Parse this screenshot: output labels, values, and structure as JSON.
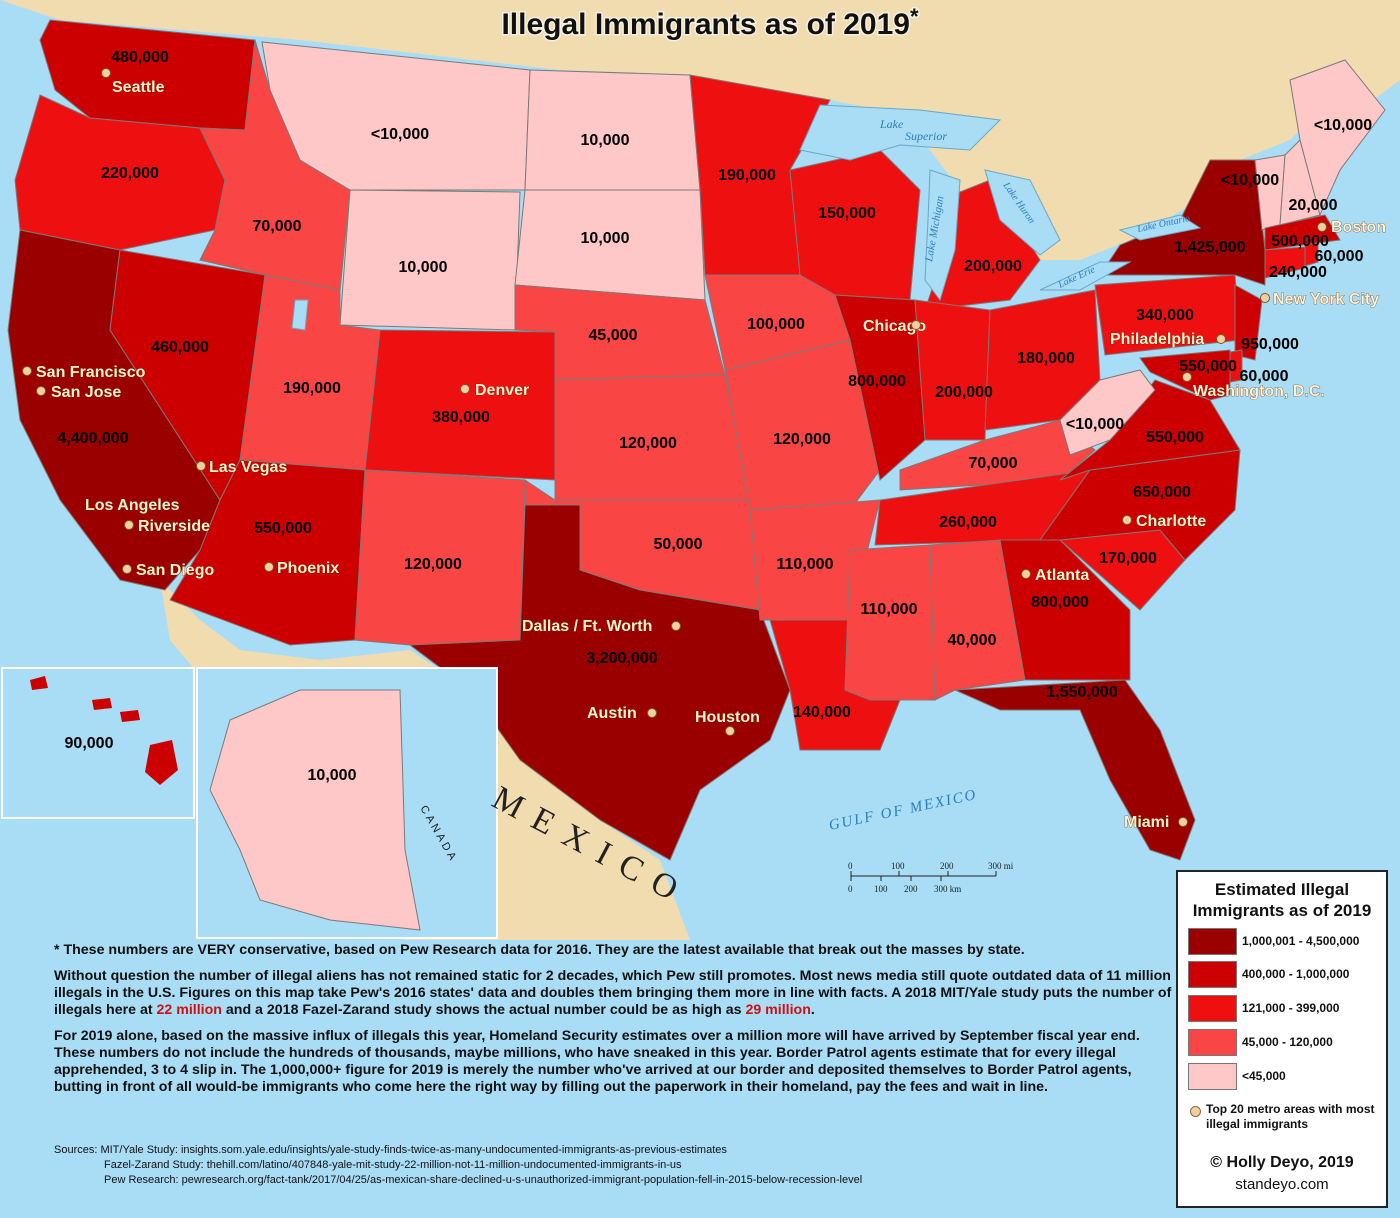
{
  "title": "Illegal Immigrants as of 2019",
  "title_mark": "*",
  "colors": {
    "tier1": "#9b0000",
    "tier2": "#cc0000",
    "tier3": "#ee1010",
    "tier4": "#fa4545",
    "tier5": "#ffc8c8",
    "land": "#f1dcb0",
    "water": "#a9dcf5",
    "city_dot": "#f0d0a0"
  },
  "state_values": {
    "washington": "480,000",
    "oregon": "220,000",
    "california": "4,400,000",
    "nevada": "460,000",
    "idaho": "70,000",
    "montana": "<10,000",
    "wyoming": "10,000",
    "utah": "190,000",
    "arizona": "550,000",
    "colorado": "380,000",
    "new_mexico": "120,000",
    "north_dakota": "10,000",
    "south_dakota": "10,000",
    "nebraska": "45,000",
    "kansas": "120,000",
    "oklahoma": "50,000",
    "texas": "3,200,000",
    "minnesota": "190,000",
    "iowa": "100,000",
    "missouri": "120,000",
    "arkansas": "110,000",
    "louisiana": "140,000",
    "wisconsin": "150,000",
    "illinois": "800,000",
    "michigan": "200,000",
    "indiana": "200,000",
    "ohio": "180,000",
    "kentucky": "70,000",
    "tennessee": "260,000",
    "mississippi": "110,000",
    "alabama": "40,000",
    "georgia": "800,000",
    "florida": "1,550,000",
    "south_carolina": "170,000",
    "north_carolina": "650,000",
    "virginia": "550,000",
    "west_virginia": "<10,000",
    "pennsylvania": "340,000",
    "new_york": "1,425,000",
    "new_jersey": "950,000",
    "maryland": "550,000",
    "delaware": "60,000",
    "connecticut": "240,000",
    "rhode_island": "60,000",
    "massachusetts": "500,000",
    "vermont": "<10,000",
    "new_hampshire": "20,000",
    "maine": "<10,000",
    "alaska": "10,000",
    "hawaii": "90,000"
  },
  "cities": [
    "Seattle",
    "San Francisco",
    "San Jose",
    "Las Vegas",
    "Los Angeles",
    "Riverside",
    "San Diego",
    "Phoenix",
    "Denver",
    "Dallas / Ft. Worth",
    "Austin",
    "Houston",
    "Chicago",
    "Atlanta",
    "Miami",
    "Charlotte",
    "Washington, D.C.",
    "Philadelphia",
    "New York City",
    "Boston"
  ],
  "water_labels": {
    "lake_superior_1": "Lake",
    "lake_superior_2": "Superior",
    "lake_michigan_1": "Lake",
    "lake_michigan_2": "Michigan",
    "lake_huron": "Lake Huron",
    "lake_erie": "Lake Erie",
    "lake_ontario": "Lake Ontario",
    "gulf": "GULF OF MEXICO"
  },
  "countries": {
    "mexico": "MEXICO",
    "canada": "CANADA"
  },
  "scale": {
    "mi_ticks": [
      "0",
      "100",
      "200",
      "300 mi"
    ],
    "km_ticks": [
      "0",
      "100",
      "200",
      "300 km"
    ]
  },
  "notes": {
    "p1": "* These numbers are VERY conservative, based on Pew Research data for 2016.  They are the latest available that break out the masses by state.",
    "p2a": "Without question the number of illegal aliens has not remained static for 2 decades, which Pew still promotes. Most news media still quote outdated data of 11 million illegals in the U.S. Figures on this map take Pew's 2016 states' data and doubles them bringing them more in line with facts. A 2018 MIT/Yale study puts the number of illegals here at ",
    "p2_red1": "22 million",
    "p2b": " and a 2018 Fazel-Zarand study shows the actual number could be as high as ",
    "p2_red2": "29 million",
    "p2c": ".",
    "p3": "For 2019 alone, based on the massive influx of illegals this year, Homeland Security estimates over a million more will have arrived by September fiscal year end. These numbers do not include the hundreds of thousands, maybe millions, who have sneaked in this year. Border Patrol agents estimate that for every illegal apprehended, 3 to 4 slip in. The 1,000,000+ figure for 2019 is merely the number who've arrived at our border and deposited themselves to Border Patrol agents, butting in front of all would-be immigrants who come here the right way by filling out the paperwork in their homeland, pay the fees and wait in line."
  },
  "sources": {
    "line1": "Sources: MIT/Yale Study: insights.som.yale.edu/insights/yale-study-finds-twice-as-many-undocumented-immigrants-as-previous-estimates",
    "line2": "Fazel-Zarand Study: thehill.com/latino/407848-yale-mit-study-22-million-not-11-million-undocumented-immigrants-in-us",
    "line3": "Pew Research: pewresearch.org/fact-tank/2017/04/25/as-mexican-share-declined-u-s-unauthorized-immigrant-population-fell-in-2015-below-recession-level"
  },
  "legend": {
    "title_line1": "Estimated Illegal",
    "title_line2": "Immigrants as of 2019",
    "ranges": [
      "1,000,001 - 4,500,000",
      "400,000 - 1,000,000",
      "121,000 - 399,000",
      "45,000 - 120,000",
      "<45,000"
    ],
    "metro_note": "Top 20 metro areas with most illegal immigrants",
    "copyright": "© Holly Deyo, 2019",
    "site": "standeyo.com"
  }
}
